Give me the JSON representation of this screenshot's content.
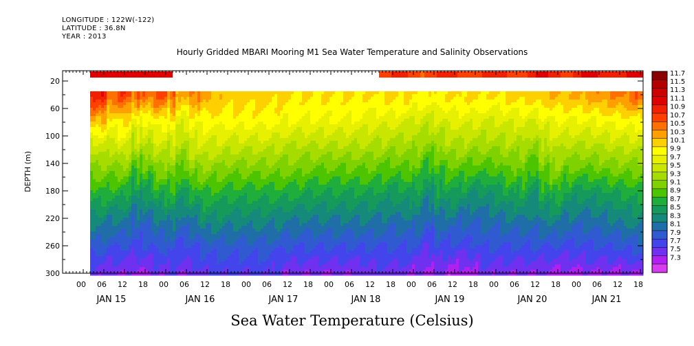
{
  "meta": {
    "longitude": "LONGITUDE : 122W(-122)",
    "latitude": "LATITUDE : 36.8N",
    "year": "YEAR : 2013"
  },
  "chart_data": {
    "type": "heatmap",
    "title": "Hourly Gridded MBARI Mooring M1 Sea Water Temperature and Salinity Observations",
    "xlabel": "",
    "ylabel": "DEPTH (m)",
    "colorbar_label": "Sea Water Temperature (Celsius)",
    "y_ticks": [
      20,
      60,
      100,
      140,
      180,
      220,
      260,
      300
    ],
    "ylim": [
      300,
      5
    ],
    "x_hour_ticks": [
      "00",
      "06",
      "12",
      "18",
      "00",
      "06",
      "12",
      "18",
      "00",
      "06",
      "12",
      "18",
      "00",
      "06",
      "12",
      "18",
      "00",
      "06",
      "12",
      "18",
      "00",
      "06",
      "12",
      "18",
      "00",
      "06",
      "12",
      "18"
    ],
    "x_date_labels": [
      "JAN 15",
      "JAN 16",
      "JAN 17",
      "JAN 18",
      "JAN 19",
      "JAN 20",
      "JAN 21"
    ],
    "colorbar_levels": [
      "11.7",
      "11.5",
      "11.3",
      "11.1",
      "10.9",
      "10.7",
      "10.5",
      "10.3",
      "10.1",
      "9.9",
      "9.7",
      "9.5",
      "9.3",
      "9.1",
      "8.9",
      "8.7",
      "8.5",
      "8.3",
      "8.1",
      "7.9",
      "7.7",
      "7.5",
      "7.3"
    ],
    "colorbar_colors": [
      "#8b0000",
      "#b30000",
      "#cc0000",
      "#e00000",
      "#f02000",
      "#ff4000",
      "#ff7000",
      "#ffa000",
      "#ffd000",
      "#ffff00",
      "#e6f000",
      "#c8e600",
      "#a6dc00",
      "#7fd200",
      "#4cc400",
      "#1fae3c",
      "#159a5c",
      "#168a7a",
      "#1f6ea8",
      "#2f5ad0",
      "#4444ec",
      "#7030f0",
      "#b020f0",
      "#d83cf0"
    ],
    "surface_gap_hours": [
      12,
      84
    ],
    "surface_temp_left": 11.1,
    "surface_temp_right": 10.8,
    "upper_gap_depth_range": [
      15,
      35
    ],
    "columns": [
      {
        "hour": 0,
        "t": [
          11.0,
          10.3,
          9.6,
          9.2,
          8.8,
          8.4,
          8.0,
          7.6
        ]
      },
      {
        "hour": 4,
        "t": [
          11.1,
          10.4,
          9.7,
          9.3,
          8.9,
          8.4,
          8.0,
          7.6
        ]
      },
      {
        "hour": 8,
        "t": [
          10.6,
          10.0,
          9.6,
          9.2,
          8.8,
          8.3,
          7.9,
          7.5
        ]
      },
      {
        "hour": 12,
        "t": [
          10.9,
          10.2,
          9.8,
          9.3,
          8.8,
          8.3,
          7.9,
          7.5
        ]
      },
      {
        "hour": 16,
        "t": [
          10.5,
          9.8,
          9.4,
          8.9,
          8.5,
          8.1,
          7.8,
          7.4
        ]
      },
      {
        "hour": 20,
        "t": [
          10.7,
          10.0,
          9.6,
          9.2,
          8.7,
          8.2,
          7.9,
          7.5
        ]
      },
      {
        "hour": 24,
        "t": [
          10.8,
          10.1,
          9.7,
          9.3,
          8.9,
          8.4,
          8.0,
          7.7
        ]
      },
      {
        "hour": 28,
        "t": [
          10.2,
          9.7,
          9.4,
          9.0,
          8.6,
          8.2,
          7.8,
          7.5
        ]
      },
      {
        "hour": 32,
        "t": [
          10.6,
          10.0,
          9.7,
          9.3,
          8.8,
          8.3,
          7.9,
          7.6
        ]
      },
      {
        "hour": 36,
        "t": [
          10.3,
          10.0,
          9.7,
          9.3,
          8.9,
          8.5,
          8.0,
          7.7
        ]
      },
      {
        "hour": 42,
        "t": [
          10.2,
          10.0,
          9.6,
          9.2,
          8.8,
          8.4,
          8.0,
          7.7
        ]
      },
      {
        "hour": 48,
        "t": [
          10.2,
          10.0,
          9.6,
          9.2,
          8.8,
          8.4,
          8.0,
          7.7
        ]
      },
      {
        "hour": 54,
        "t": [
          10.2,
          10.0,
          9.6,
          9.2,
          8.8,
          8.4,
          8.0,
          7.7
        ]
      },
      {
        "hour": 60,
        "t": [
          10.1,
          9.9,
          9.5,
          9.2,
          8.8,
          8.3,
          7.9,
          7.5
        ]
      },
      {
        "hour": 66,
        "t": [
          10.1,
          9.9,
          9.5,
          9.1,
          8.7,
          8.3,
          7.9,
          7.5
        ]
      },
      {
        "hour": 72,
        "t": [
          10.1,
          9.9,
          9.5,
          9.1,
          8.7,
          8.3,
          7.9,
          7.5
        ]
      },
      {
        "hour": 78,
        "t": [
          10.1,
          9.9,
          9.5,
          9.1,
          8.7,
          8.3,
          7.9,
          7.5
        ]
      },
      {
        "hour": 84,
        "t": [
          10.1,
          9.8,
          9.5,
          9.1,
          8.7,
          8.3,
          7.9,
          7.6
        ]
      },
      {
        "hour": 90,
        "t": [
          10.2,
          9.8,
          9.4,
          9.0,
          8.6,
          8.2,
          7.9,
          7.6
        ]
      },
      {
        "hour": 96,
        "t": [
          10.1,
          9.7,
          9.4,
          9.1,
          8.7,
          8.3,
          7.9,
          7.5
        ]
      },
      {
        "hour": 100,
        "t": [
          10.0,
          9.6,
          9.2,
          8.8,
          8.4,
          8.0,
          7.7,
          7.4
        ]
      },
      {
        "hour": 104,
        "t": [
          10.1,
          9.7,
          9.4,
          9.0,
          8.7,
          8.3,
          7.9,
          7.5
        ]
      },
      {
        "hour": 108,
        "t": [
          10.1,
          9.8,
          9.5,
          9.1,
          8.7,
          8.2,
          7.8,
          7.3
        ]
      },
      {
        "hour": 112,
        "t": [
          10.2,
          9.8,
          9.4,
          9.0,
          8.5,
          8.1,
          7.8,
          7.4
        ]
      },
      {
        "hour": 116,
        "t": [
          10.1,
          9.7,
          9.4,
          9.0,
          8.5,
          8.2,
          7.9,
          7.6
        ]
      },
      {
        "hour": 120,
        "t": [
          10.1,
          9.7,
          9.4,
          9.0,
          8.6,
          8.2,
          7.9,
          7.5
        ]
      },
      {
        "hour": 126,
        "t": [
          10.2,
          9.8,
          9.5,
          9.2,
          8.8,
          8.3,
          7.9,
          7.5
        ]
      },
      {
        "hour": 130,
        "t": [
          10.2,
          9.7,
          9.3,
          8.9,
          8.5,
          8.2,
          7.9,
          7.5
        ]
      },
      {
        "hour": 136,
        "t": [
          10.3,
          9.9,
          9.6,
          9.3,
          8.9,
          8.4,
          7.9,
          7.4
        ]
      },
      {
        "hour": 142,
        "t": [
          10.3,
          9.9,
          9.5,
          9.1,
          8.6,
          8.2,
          7.8,
          7.4
        ]
      },
      {
        "hour": 148,
        "t": [
          10.4,
          9.9,
          9.5,
          9.1,
          8.6,
          8.2,
          7.9,
          7.5
        ]
      },
      {
        "hour": 154,
        "t": [
          10.5,
          10.0,
          9.6,
          9.2,
          8.7,
          8.3,
          7.9,
          7.4
        ]
      },
      {
        "hour": 160,
        "t": [
          10.6,
          10.0,
          9.6,
          9.2,
          8.8,
          8.4,
          8.0,
          7.5
        ]
      },
      {
        "hour": 164,
        "t": [
          10.8,
          10.1,
          9.6,
          9.2,
          8.8,
          8.4,
          8.0,
          7.4
        ]
      },
      {
        "hour": 168,
        "t": [
          10.9,
          10.2,
          9.7,
          9.2,
          8.8,
          8.4,
          8.0,
          7.5
        ]
      }
    ]
  }
}
